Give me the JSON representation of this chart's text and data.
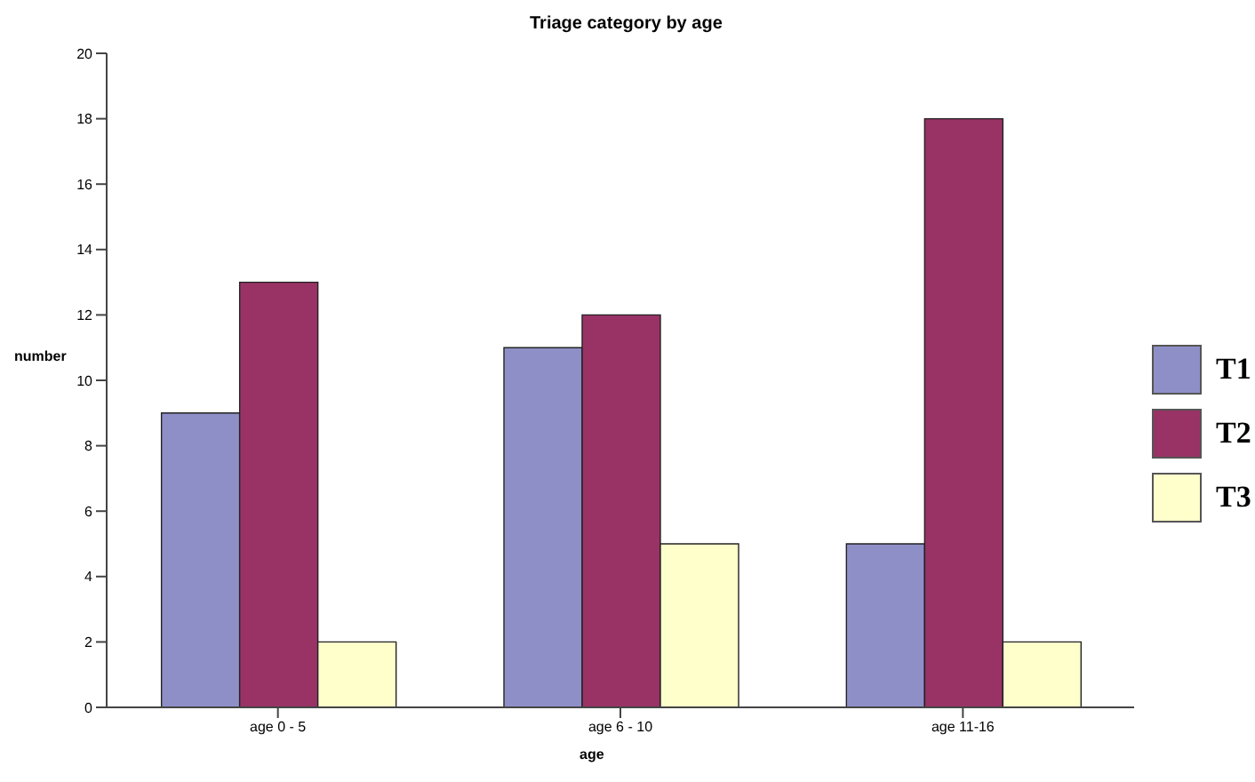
{
  "chart_data": {
    "type": "bar",
    "title": "Triage category by age",
    "xlabel": "age",
    "ylabel": "number",
    "categories": [
      "age 0 - 5",
      "age 6 - 10",
      "age 11-16"
    ],
    "series": [
      {
        "name": "T1",
        "color": "#8f8fc8",
        "values": [
          9,
          11,
          5
        ]
      },
      {
        "name": "T2",
        "color": "#993366",
        "values": [
          13,
          12,
          18
        ]
      },
      {
        "name": "T3",
        "color": "#ffffcc",
        "values": [
          2,
          5,
          2
        ]
      }
    ],
    "ylim": [
      0,
      20
    ],
    "yticks": [
      0,
      2,
      4,
      6,
      8,
      10,
      12,
      14,
      16,
      18,
      20
    ],
    "grid": false,
    "legend": "right"
  }
}
